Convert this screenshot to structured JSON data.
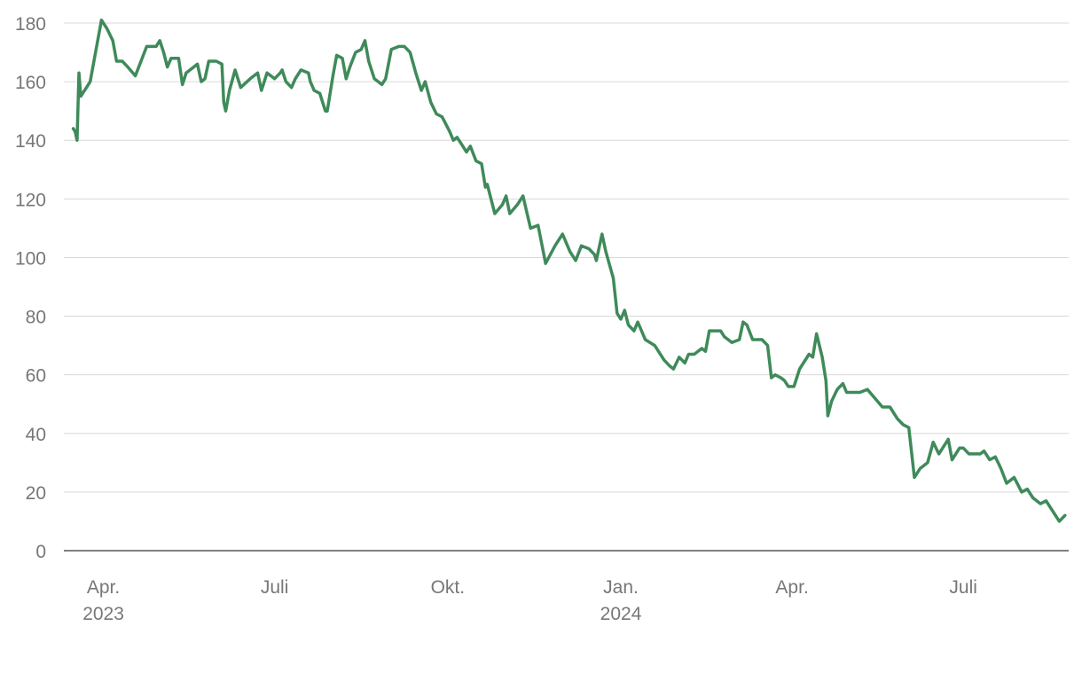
{
  "chart_data": {
    "type": "line",
    "title": "",
    "xlabel": "",
    "ylabel": "",
    "ylim": [
      0,
      180
    ],
    "y_ticks": [
      0,
      20,
      40,
      60,
      80,
      100,
      120,
      140,
      160,
      180
    ],
    "grid": true,
    "x_range": [
      "2023-03-11",
      "2024-08-26"
    ],
    "x_ticks": [
      {
        "date": "2023-04-01",
        "label": "Apr.",
        "sublabel": "2023"
      },
      {
        "date": "2023-07-01",
        "label": "Juli",
        "sublabel": ""
      },
      {
        "date": "2023-10-01",
        "label": "Okt.",
        "sublabel": ""
      },
      {
        "date": "2024-01-01",
        "label": "Jan.",
        "sublabel": "2024"
      },
      {
        "date": "2024-04-01",
        "label": "Apr.",
        "sublabel": ""
      },
      {
        "date": "2024-07-01",
        "label": "Juli",
        "sublabel": ""
      }
    ],
    "series": [
      {
        "color": "#3f8a5a",
        "points": [
          [
            "2023-03-16",
            144
          ],
          [
            "2023-03-17",
            143
          ],
          [
            "2023-03-18",
            140
          ],
          [
            "2023-03-19",
            163
          ],
          [
            "2023-03-20",
            155
          ],
          [
            "2023-03-23",
            158
          ],
          [
            "2023-03-25",
            160
          ],
          [
            "2023-03-27",
            167
          ],
          [
            "2023-03-31",
            181
          ],
          [
            "2023-04-03",
            178
          ],
          [
            "2023-04-06",
            174
          ],
          [
            "2023-04-08",
            167
          ],
          [
            "2023-04-11",
            167
          ],
          [
            "2023-04-14",
            165
          ],
          [
            "2023-04-18",
            162
          ],
          [
            "2023-04-21",
            167
          ],
          [
            "2023-04-24",
            172
          ],
          [
            "2023-04-26",
            172
          ],
          [
            "2023-04-29",
            172
          ],
          [
            "2023-05-01",
            174
          ],
          [
            "2023-05-03",
            170
          ],
          [
            "2023-05-05",
            165
          ],
          [
            "2023-05-07",
            168
          ],
          [
            "2023-05-11",
            168
          ],
          [
            "2023-05-13",
            159
          ],
          [
            "2023-05-15",
            163
          ],
          [
            "2023-05-19",
            165
          ],
          [
            "2023-05-21",
            166
          ],
          [
            "2023-05-23",
            160
          ],
          [
            "2023-05-25",
            161
          ],
          [
            "2023-05-27",
            167
          ],
          [
            "2023-05-31",
            167
          ],
          [
            "2023-06-03",
            166
          ],
          [
            "2023-06-04",
            153
          ],
          [
            "2023-06-05",
            150
          ],
          [
            "2023-06-07",
            157
          ],
          [
            "2023-06-10",
            164
          ],
          [
            "2023-06-13",
            158
          ],
          [
            "2023-06-18",
            161
          ],
          [
            "2023-06-22",
            163
          ],
          [
            "2023-06-24",
            157
          ],
          [
            "2023-06-27",
            163
          ],
          [
            "2023-07-01",
            161
          ],
          [
            "2023-07-04",
            163
          ],
          [
            "2023-07-05",
            164
          ],
          [
            "2023-07-07",
            160
          ],
          [
            "2023-07-10",
            158
          ],
          [
            "2023-07-12",
            161
          ],
          [
            "2023-07-15",
            164
          ],
          [
            "2023-07-19",
            163
          ],
          [
            "2023-07-20",
            160
          ],
          [
            "2023-07-22",
            157
          ],
          [
            "2023-07-25",
            156
          ],
          [
            "2023-07-28",
            150
          ],
          [
            "2023-07-29",
            150
          ],
          [
            "2023-08-01",
            162
          ],
          [
            "2023-08-03",
            169
          ],
          [
            "2023-08-06",
            168
          ],
          [
            "2023-08-08",
            161
          ],
          [
            "2023-08-10",
            165
          ],
          [
            "2023-08-13",
            170
          ],
          [
            "2023-08-16",
            171
          ],
          [
            "2023-08-18",
            174
          ],
          [
            "2023-08-20",
            167
          ],
          [
            "2023-08-23",
            161
          ],
          [
            "2023-08-27",
            159
          ],
          [
            "2023-08-29",
            161
          ],
          [
            "2023-09-01",
            171
          ],
          [
            "2023-09-05",
            172
          ],
          [
            "2023-09-08",
            172
          ],
          [
            "2023-09-11",
            170
          ],
          [
            "2023-09-14",
            163
          ],
          [
            "2023-09-17",
            157
          ],
          [
            "2023-09-19",
            160
          ],
          [
            "2023-09-22",
            153
          ],
          [
            "2023-09-25",
            149
          ],
          [
            "2023-09-28",
            148
          ],
          [
            "2023-10-02",
            143
          ],
          [
            "2023-10-04",
            140
          ],
          [
            "2023-10-06",
            141
          ],
          [
            "2023-10-09",
            138
          ],
          [
            "2023-10-11",
            136
          ],
          [
            "2023-10-13",
            138
          ],
          [
            "2023-10-16",
            133
          ],
          [
            "2023-10-19",
            132
          ],
          [
            "2023-10-21",
            124
          ],
          [
            "2023-10-22",
            125
          ],
          [
            "2023-10-26",
            115
          ],
          [
            "2023-10-30",
            118
          ],
          [
            "2023-11-01",
            121
          ],
          [
            "2023-11-03",
            115
          ],
          [
            "2023-11-07",
            118
          ],
          [
            "2023-11-10",
            121
          ],
          [
            "2023-11-14",
            110
          ],
          [
            "2023-11-18",
            111
          ],
          [
            "2023-11-22",
            98
          ],
          [
            "2023-11-27",
            104
          ],
          [
            "2023-12-01",
            108
          ],
          [
            "2023-12-05",
            102
          ],
          [
            "2023-12-08",
            99
          ],
          [
            "2023-12-11",
            104
          ],
          [
            "2023-12-15",
            103
          ],
          [
            "2023-12-18",
            101
          ],
          [
            "2023-12-19",
            99
          ],
          [
            "2023-12-22",
            108
          ],
          [
            "2023-12-24",
            102
          ],
          [
            "2023-12-28",
            93
          ],
          [
            "2023-12-30",
            81
          ],
          [
            "2024-01-01",
            79
          ],
          [
            "2024-01-03",
            82
          ],
          [
            "2024-01-05",
            77
          ],
          [
            "2024-01-08",
            75
          ],
          [
            "2024-01-10",
            78
          ],
          [
            "2024-01-14",
            72
          ],
          [
            "2024-01-19",
            70
          ],
          [
            "2024-01-24",
            65
          ],
          [
            "2024-01-27",
            63
          ],
          [
            "2024-01-29",
            62
          ],
          [
            "2024-02-01",
            66
          ],
          [
            "2024-02-04",
            64
          ],
          [
            "2024-02-06",
            67
          ],
          [
            "2024-02-09",
            67
          ],
          [
            "2024-02-13",
            69
          ],
          [
            "2024-02-15",
            68
          ],
          [
            "2024-02-17",
            75
          ],
          [
            "2024-02-20",
            75
          ],
          [
            "2024-02-23",
            75
          ],
          [
            "2024-02-25",
            73
          ],
          [
            "2024-02-27",
            72
          ],
          [
            "2024-02-29",
            71
          ],
          [
            "2024-03-04",
            72
          ],
          [
            "2024-03-06",
            78
          ],
          [
            "2024-03-08",
            77
          ],
          [
            "2024-03-11",
            72
          ],
          [
            "2024-03-16",
            72
          ],
          [
            "2024-03-19",
            70
          ],
          [
            "2024-03-21",
            59
          ],
          [
            "2024-03-23",
            60
          ],
          [
            "2024-03-26",
            59
          ],
          [
            "2024-03-28",
            58
          ],
          [
            "2024-03-30",
            56
          ],
          [
            "2024-04-02",
            56
          ],
          [
            "2024-04-05",
            62
          ],
          [
            "2024-04-10",
            67
          ],
          [
            "2024-04-12",
            66
          ],
          [
            "2024-04-14",
            74
          ],
          [
            "2024-04-17",
            66
          ],
          [
            "2024-04-19",
            58
          ],
          [
            "2024-04-20",
            46
          ],
          [
            "2024-04-22",
            51
          ],
          [
            "2024-04-25",
            55
          ],
          [
            "2024-04-28",
            57
          ],
          [
            "2024-04-30",
            54
          ],
          [
            "2024-05-07",
            54
          ],
          [
            "2024-05-11",
            55
          ],
          [
            "2024-05-15",
            52
          ],
          [
            "2024-05-19",
            49
          ],
          [
            "2024-05-23",
            49
          ],
          [
            "2024-05-27",
            45
          ],
          [
            "2024-05-30",
            43
          ],
          [
            "2024-06-02",
            42
          ],
          [
            "2024-06-05",
            25
          ],
          [
            "2024-06-08",
            28
          ],
          [
            "2024-06-12",
            30
          ],
          [
            "2024-06-15",
            37
          ],
          [
            "2024-06-18",
            33
          ],
          [
            "2024-06-23",
            38
          ],
          [
            "2024-06-25",
            31
          ],
          [
            "2024-06-27",
            33
          ],
          [
            "2024-06-29",
            35
          ],
          [
            "2024-07-01",
            35
          ],
          [
            "2024-07-04",
            33
          ],
          [
            "2024-07-10",
            33
          ],
          [
            "2024-07-12",
            34
          ],
          [
            "2024-07-15",
            31
          ],
          [
            "2024-07-18",
            32
          ],
          [
            "2024-07-21",
            28
          ],
          [
            "2024-07-24",
            23
          ],
          [
            "2024-07-28",
            25
          ],
          [
            "2024-08-01",
            20
          ],
          [
            "2024-08-04",
            21
          ],
          [
            "2024-08-07",
            18
          ],
          [
            "2024-08-11",
            16
          ],
          [
            "2024-08-14",
            17
          ],
          [
            "2024-08-18",
            13
          ],
          [
            "2024-08-21",
            10
          ],
          [
            "2024-08-24",
            12
          ]
        ]
      }
    ]
  }
}
